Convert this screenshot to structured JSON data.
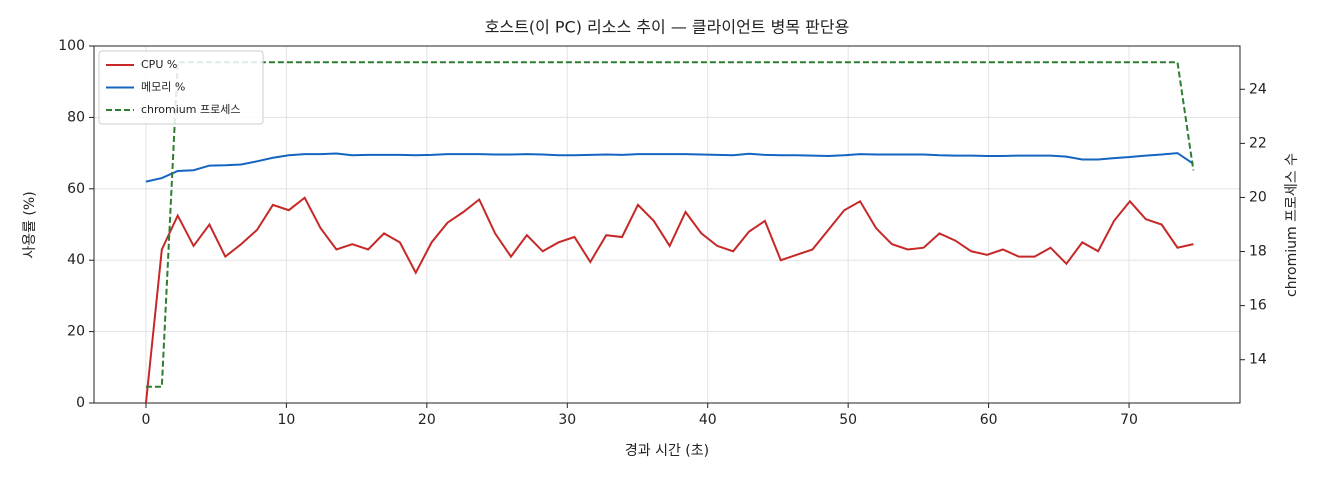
{
  "chart_data": {
    "type": "line",
    "title": "호스트(이 PC) 리소스 추이 — 클라이언트 병목 판단용",
    "x_label": "경과 시간 (초)",
    "y_label": "사용률 (%)",
    "y2_label": "chromium 프로세스 수",
    "x": [
      0,
      1.13,
      2.26,
      3.39,
      4.52,
      5.65,
      6.78,
      7.91,
      9.04,
      10.17,
      11.3,
      12.43,
      13.56,
      14.69,
      15.82,
      16.95,
      18.08,
      19.21,
      20.34,
      21.47,
      22.6,
      23.73,
      24.86,
      25.99,
      27.12,
      28.25,
      29.38,
      30.51,
      31.64,
      32.77,
      33.9,
      35.03,
      36.16,
      37.29,
      38.42,
      39.55,
      40.68,
      41.81,
      42.94,
      44.07,
      45.2,
      46.33,
      47.46,
      48.59,
      49.72,
      50.85,
      51.98,
      53.11,
      54.24,
      55.37,
      56.5,
      57.63,
      58.76,
      59.89,
      61.02,
      62.15,
      63.28,
      64.41,
      65.54,
      66.67,
      67.8,
      68.93,
      70.06,
      71.19,
      72.32,
      73.45,
      74.58
    ],
    "series": [
      {
        "name": "CPU %",
        "color": "#c62828",
        "dash": false,
        "values": [
          0,
          43,
          52.5,
          44,
          50,
          41,
          44.5,
          48.5,
          55.5,
          54,
          57.5,
          49,
          43,
          44.5,
          43,
          47.5,
          45,
          36.5,
          45,
          50.5,
          53.5,
          57,
          47.5,
          41,
          47,
          42.5,
          45,
          46.5,
          39.5,
          47,
          46.5,
          55.5,
          51,
          44,
          53.5,
          47.5,
          44,
          42.5,
          48,
          51,
          40,
          41.5,
          43,
          48.5,
          54,
          56.5,
          49,
          44.5,
          43,
          43.5,
          47.5,
          45.5,
          42.5,
          41.5,
          43,
          41,
          41,
          43.5,
          39,
          45,
          42.5,
          51,
          56.5,
          51.5,
          50,
          43.5,
          44.5
        ]
      },
      {
        "name": "메모리 %",
        "color": "#1565c0",
        "dash": false,
        "values": [
          62,
          63,
          65,
          65.2,
          66.5,
          66.6,
          66.8,
          67.7,
          68.7,
          69.4,
          69.7,
          69.7,
          69.9,
          69.4,
          69.5,
          69.5,
          69.5,
          69.4,
          69.5,
          69.7,
          69.7,
          69.7,
          69.6,
          69.6,
          69.7,
          69.6,
          69.4,
          69.4,
          69.5,
          69.6,
          69.5,
          69.7,
          69.7,
          69.7,
          69.7,
          69.6,
          69.5,
          69.4,
          69.8,
          69.5,
          69.4,
          69.4,
          69.3,
          69.2,
          69.4,
          69.7,
          69.6,
          69.6,
          69.6,
          69.6,
          69.4,
          69.3,
          69.3,
          69.2,
          69.2,
          69.3,
          69.3,
          69.3,
          69,
          68.2,
          68.2,
          68.6,
          68.9,
          69.3,
          69.6,
          70,
          67
        ]
      },
      {
        "name": "chromium 프로세스",
        "color": "#2e7d32",
        "dash": true,
        "axis": "y2",
        "values": [
          13,
          13,
          25,
          25,
          25,
          25,
          25,
          25,
          25,
          25,
          25,
          25,
          25,
          25,
          25,
          25,
          25,
          25,
          25,
          25,
          25,
          25,
          25,
          25,
          25,
          25,
          25,
          25,
          25,
          25,
          25,
          25,
          25,
          25,
          25,
          25,
          25,
          25,
          25,
          25,
          25,
          25,
          25,
          25,
          25,
          25,
          25,
          25,
          25,
          25,
          25,
          25,
          25,
          25,
          25,
          25,
          25,
          25,
          25,
          25,
          25,
          25,
          25,
          25,
          25,
          25,
          21
        ]
      }
    ],
    "xlim": [
      -3.7,
      77.9
    ],
    "xticks": [
      0,
      10,
      20,
      30,
      40,
      50,
      60,
      70
    ],
    "ylim": [
      0,
      100
    ],
    "yticks": [
      0,
      20,
      40,
      60,
      80,
      100
    ],
    "y2lim": [
      12.4,
      25.6
    ],
    "y2ticks": [
      14,
      16,
      18,
      20,
      22,
      24
    ],
    "grid": true,
    "legend": "upper-left"
  }
}
